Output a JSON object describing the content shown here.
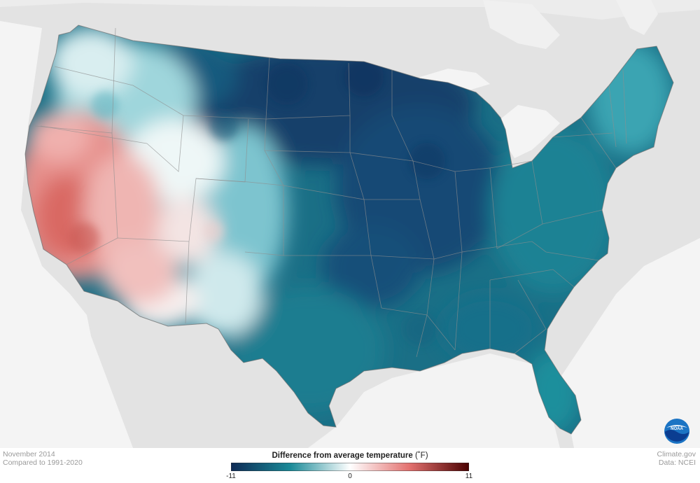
{
  "colors": {
    "cold_extreme": "#0d2a55",
    "cold_mid": "#1a8a98",
    "neutral": "#ffffff",
    "warm_mid": "#e3716f",
    "warm_extreme": "#4a0000",
    "background_land": "#e6e6e6",
    "border_lines": "#8a8a8a",
    "water": "#f4f4f4"
  },
  "map": {
    "month": "November 2014",
    "baseline": "Compared to 1991-2020",
    "pattern": "Western US warmer than average, central and eastern US colder than average"
  },
  "legend": {
    "title": "Difference from average temperature",
    "unit": "(˚F)",
    "min": "-11",
    "mid": "0",
    "max": "11"
  },
  "credits": {
    "site": "Climate.gov",
    "source": "Data: NCEI"
  },
  "logo": {
    "text": "NOAA",
    "icon": "noaa-logo-icon"
  }
}
